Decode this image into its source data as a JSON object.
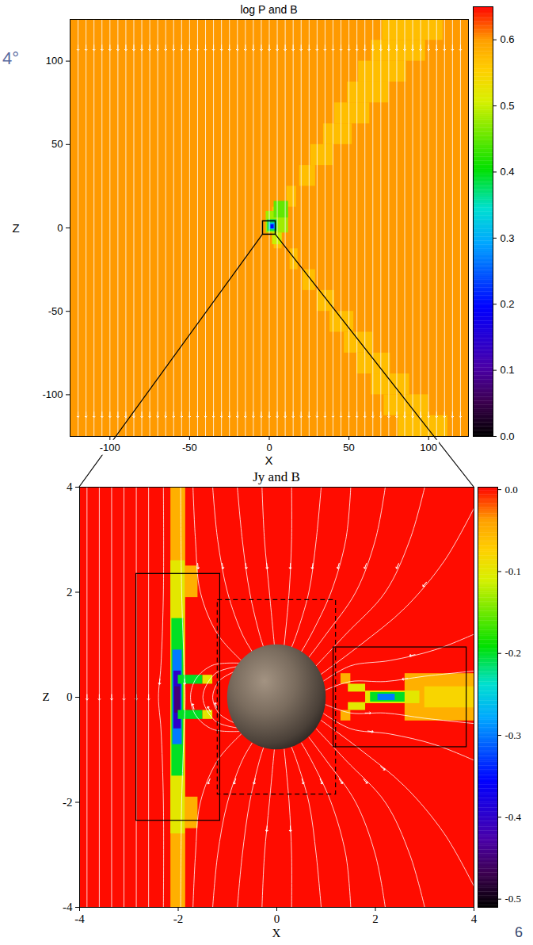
{
  "chart_data": [
    {
      "type": "heatmap",
      "title": "log P and B",
      "x_label": "X",
      "y_label": "Z",
      "xlim": [
        -125,
        125
      ],
      "ylim": [
        -125,
        125
      ],
      "xticks": [
        -100,
        -50,
        0,
        50,
        100
      ],
      "yticks": [
        -100,
        -50,
        0,
        50,
        100
      ],
      "colorbar": {
        "range": [
          0,
          0.65
        ],
        "ticks": [
          {
            "value": 0,
            "label": "0.0"
          },
          0.1,
          0.2,
          0.3,
          0.4,
          0.5,
          0.6
        ]
      },
      "cells": [
        [
          -125,
          125,
          -125,
          125,
          0.6
        ],
        [
          2,
          8,
          0,
          12.5,
          0.57
        ],
        [
          11,
          17,
          12.5,
          25,
          0.57
        ],
        [
          19,
          29,
          25,
          37.5,
          0.57
        ],
        [
          26,
          40,
          37.5,
          50,
          0.57
        ],
        [
          34,
          52,
          50,
          62.5,
          0.57
        ],
        [
          41,
          63,
          62.5,
          75,
          0.57
        ],
        [
          49,
          75,
          75,
          87.5,
          0.57
        ],
        [
          56,
          86,
          87.5,
          100,
          0.57
        ],
        [
          64,
          98,
          100,
          112.5,
          0.57
        ],
        [
          71,
          109,
          112.5,
          125,
          0.57
        ],
        [
          3,
          8,
          -12.5,
          0,
          0.57
        ],
        [
          13,
          18,
          -25,
          -12.5,
          0.57
        ],
        [
          21,
          29,
          -37.5,
          -25,
          0.57
        ],
        [
          30,
          41,
          -50,
          -37.5,
          0.57
        ],
        [
          38,
          53,
          -62.5,
          -50,
          0.57
        ],
        [
          47,
          65,
          -75,
          -62.5,
          0.57
        ],
        [
          55,
          76,
          -87.5,
          -75,
          0.57
        ],
        [
          64,
          88,
          -100,
          -87.5,
          0.57
        ],
        [
          72,
          100,
          -112.5,
          -100,
          0.57
        ],
        [
          81,
          112,
          -125,
          -112.5,
          0.57
        ],
        [
          2,
          8,
          -10,
          -3,
          0.5
        ],
        [
          -2,
          12,
          -3,
          10,
          0.48
        ],
        [
          3,
          12,
          6,
          16,
          0.45
        ],
        [
          -1,
          5,
          -2,
          5,
          0.38
        ],
        [
          0,
          4,
          -1,
          3,
          0.3
        ],
        [
          1,
          3,
          -0.5,
          2,
          0.2
        ]
      ],
      "vertical_field_lines_x": [
        -120,
        -115,
        -110,
        -105,
        -100,
        -95,
        -90,
        -85,
        -80,
        -75,
        -70,
        -65,
        -60,
        -55,
        -50,
        -45,
        -40,
        -35,
        -30,
        -25,
        -20,
        -15,
        -10,
        -5,
        0,
        5,
        10,
        15,
        20,
        25,
        30,
        35,
        40,
        45,
        50,
        55,
        60,
        65,
        70,
        75,
        80,
        85,
        90,
        95,
        100,
        105,
        110,
        115,
        120
      ],
      "arrows_z": [
        108,
        -112
      ],
      "annotations": [
        "4°"
      ]
    },
    {
      "type": "heatmap",
      "title": "Jy and B",
      "x_label": "X",
      "y_label": "Z",
      "xlim": [
        -4,
        4
      ],
      "ylim": [
        -4,
        4
      ],
      "xticks": [
        -4,
        -2,
        0,
        2,
        4
      ],
      "yticks": [
        -4,
        -2,
        0,
        2,
        4
      ],
      "colorbar": {
        "range": [
          -0.51,
          0.003
        ],
        "ticks": [
          {
            "value": 0,
            "label": "0.0"
          },
          -0.1,
          -0.2,
          -0.3,
          -0.4,
          -0.5
        ]
      },
      "cells": [
        [
          -4,
          4,
          -4,
          4,
          0
        ],
        [
          -2.15,
          -1.85,
          -4,
          4,
          -0.05
        ],
        [
          -1.9,
          -1.6,
          1.9,
          2.5,
          -0.05
        ],
        [
          -1.9,
          -1.6,
          -2.5,
          -1.9,
          -0.05
        ],
        [
          -2.15,
          -1.86,
          -2.6,
          2.6,
          -0.1
        ],
        [
          -2.13,
          -1.89,
          -1.5,
          1.5,
          -0.2
        ],
        [
          -2.11,
          -1.92,
          -0.9,
          0.9,
          -0.3
        ],
        [
          -2.09,
          -1.94,
          -0.6,
          0.5,
          -0.4
        ],
        [
          -2.07,
          -1.96,
          -0.3,
          0.2,
          -0.45
        ],
        [
          -2.0,
          -1.5,
          0.25,
          0.42,
          -0.2
        ],
        [
          -1.5,
          -1.3,
          0.25,
          0.42,
          -0.1
        ],
        [
          -2.0,
          -1.5,
          -0.42,
          -0.25,
          -0.2
        ],
        [
          -1.5,
          -1.3,
          -0.42,
          -0.25,
          -0.1
        ],
        [
          2.6,
          4,
          -0.45,
          0.45,
          -0.05
        ],
        [
          3.0,
          4,
          -0.2,
          0.2,
          -0.08
        ],
        [
          1.8,
          2.9,
          -0.12,
          0.12,
          -0.1
        ],
        [
          1.9,
          2.6,
          -0.09,
          0.09,
          -0.2
        ],
        [
          2.05,
          2.4,
          -0.06,
          0.06,
          -0.3
        ],
        [
          1.45,
          1.8,
          0.1,
          0.25,
          -0.1
        ],
        [
          1.3,
          1.5,
          0.25,
          0.45,
          -0.05
        ],
        [
          1.45,
          1.8,
          -0.25,
          -0.1,
          -0.1
        ],
        [
          1.3,
          1.5,
          -0.45,
          -0.25,
          -0.05
        ]
      ],
      "vertical_field_lines_x": [
        -3.85,
        -3.6,
        -3.35,
        -3.1,
        -2.85,
        -2.6
      ],
      "field_lines": [
        {
          "x": [
            -1.7,
            -1.65,
            -1.55,
            -1.2,
            -0.72
          ],
          "z": [
            4,
            3,
            2,
            1.2,
            0.7
          ]
        },
        {
          "x": [
            -1.3,
            -1.2,
            -1.0,
            -0.7,
            -0.5
          ],
          "z": [
            4,
            3,
            2,
            1.2,
            0.87
          ]
        },
        {
          "x": [
            -0.8,
            -0.7,
            -0.55,
            -0.35,
            -0.27
          ],
          "z": [
            4,
            3,
            2,
            1.2,
            0.96
          ]
        },
        {
          "x": [
            -0.3,
            -0.25,
            -0.15,
            -0.05
          ],
          "z": [
            4,
            3,
            2,
            1.0
          ]
        },
        {
          "x": [
            0.3,
            0.3,
            0.25,
            0.15
          ],
          "z": [
            4,
            3,
            2,
            0.99
          ]
        },
        {
          "x": [
            0.9,
            0.8,
            0.65,
            0.4,
            0.3
          ],
          "z": [
            4,
            3,
            2,
            1.2,
            0.95
          ]
        },
        {
          "x": [
            1.5,
            1.4,
            1.1,
            0.7,
            0.5
          ],
          "z": [
            4,
            3,
            2,
            1.2,
            0.87
          ]
        },
        {
          "x": [
            2.2,
            2.0,
            1.6,
            1.0,
            0.65
          ],
          "z": [
            4,
            3,
            2,
            1.2,
            0.76
          ]
        },
        {
          "x": [
            3.0,
            2.7,
            2.2,
            1.4,
            0.8
          ],
          "z": [
            4,
            3,
            2,
            1.2,
            0.6
          ]
        },
        {
          "x": [
            4,
            3.4,
            2.6,
            1.7,
            0.9
          ],
          "z": [
            3.6,
            2.6,
            1.7,
            1.0,
            0.44
          ]
        },
        {
          "x": [
            4,
            3.2,
            2.3,
            1.5,
            0.95
          ],
          "z": [
            1.2,
            0.9,
            0.7,
            0.6,
            0.31
          ]
        },
        {
          "x": [
            4,
            3,
            2.2,
            1.5,
            0.99
          ],
          "z": [
            0.5,
            0.4,
            0.3,
            0.3,
            0.14
          ]
        },
        {
          "x": [
            -0.72,
            -1.2,
            -1.55,
            -1.65,
            -1.7
          ],
          "z": [
            -0.7,
            -1.2,
            -2,
            -3,
            -4
          ]
        },
        {
          "x": [
            -0.5,
            -0.7,
            -1.0,
            -1.2,
            -1.3
          ],
          "z": [
            -0.87,
            -1.2,
            -2,
            -3,
            -4
          ]
        },
        {
          "x": [
            -0.27,
            -0.35,
            -0.55,
            -0.7,
            -0.8
          ],
          "z": [
            -0.96,
            -1.2,
            -2,
            -3,
            -4
          ]
        },
        {
          "x": [
            -0.05,
            -0.15,
            -0.25,
            -0.3
          ],
          "z": [
            -1.0,
            -2,
            -3,
            -4
          ]
        },
        {
          "x": [
            0.15,
            0.25,
            0.3,
            0.3
          ],
          "z": [
            -0.99,
            -2,
            -3,
            -4
          ]
        },
        {
          "x": [
            0.3,
            0.4,
            0.65,
            0.8,
            0.9
          ],
          "z": [
            -0.95,
            -1.2,
            -2,
            -3,
            -4
          ]
        },
        {
          "x": [
            0.5,
            0.7,
            1.1,
            1.4,
            1.5
          ],
          "z": [
            -0.87,
            -1.2,
            -2,
            -3,
            -4
          ]
        },
        {
          "x": [
            0.65,
            1.0,
            1.6,
            2.0,
            2.2
          ],
          "z": [
            -0.76,
            -1.2,
            -2,
            -3,
            -4
          ]
        },
        {
          "x": [
            0.8,
            1.4,
            2.2,
            2.7,
            3.0
          ],
          "z": [
            -0.6,
            -1.2,
            -2,
            -3,
            -4
          ]
        },
        {
          "x": [
            0.9,
            1.7,
            2.6,
            3.4,
            4
          ],
          "z": [
            -0.44,
            -1.0,
            -1.7,
            -2.6,
            -3.6
          ]
        },
        {
          "x": [
            0.95,
            1.5,
            2.3,
            3.2,
            4
          ],
          "z": [
            -0.31,
            -0.6,
            -0.7,
            -0.9,
            -1.2
          ]
        },
        {
          "x": [
            0.99,
            1.5,
            2.2,
            3,
            4
          ],
          "z": [
            -0.14,
            -0.3,
            -0.3,
            -0.4,
            -0.5
          ]
        },
        {
          "x": [
            -0.88,
            -1.17,
            -1.3,
            -1.17,
            -0.88
          ],
          "z": [
            -0.48,
            -0.31,
            0,
            0.31,
            0.48
          ]
        },
        {
          "x": [
            -0.82,
            -1.25,
            -1.5,
            -1.25,
            -0.82
          ],
          "z": [
            -0.58,
            -0.45,
            0,
            0.45,
            0.58
          ]
        },
        {
          "x": [
            -0.76,
            -1.3,
            -1.64,
            -1.75,
            -1.64,
            -1.3,
            -0.76
          ],
          "z": [
            -0.65,
            -0.61,
            -0.35,
            0,
            0.35,
            0.61,
            0.65
          ]
        },
        {
          "x": [
            -2.3,
            -2.3,
            -2.35,
            -2.4,
            -2.35,
            -2.3,
            -2.3
          ],
          "z": [
            4,
            2,
            0.6,
            0,
            -0.6,
            -2,
            -4
          ]
        },
        {
          "x": [
            -1.95,
            -1.93,
            -1.88,
            -1.86,
            -1.88,
            -1.93,
            -1.95
          ],
          "z": [
            4,
            2,
            0.6,
            0,
            -0.6,
            -2,
            -4
          ]
        }
      ],
      "body": {
        "x": 0,
        "z": 0,
        "radius": 1
      },
      "boxes": [
        {
          "x": [
            -2.85,
            -1.15
          ],
          "z": [
            -2.35,
            2.35
          ],
          "line_style": "solid"
        },
        {
          "x": [
            -1.2,
            1.2
          ],
          "z": [
            -1.85,
            1.85
          ],
          "line_style": "dashed"
        },
        {
          "x": [
            1.15,
            3.85
          ],
          "z": [
            -0.95,
            0.95
          ],
          "line_style": "solid"
        }
      ],
      "annotations": [
        "6"
      ]
    }
  ]
}
